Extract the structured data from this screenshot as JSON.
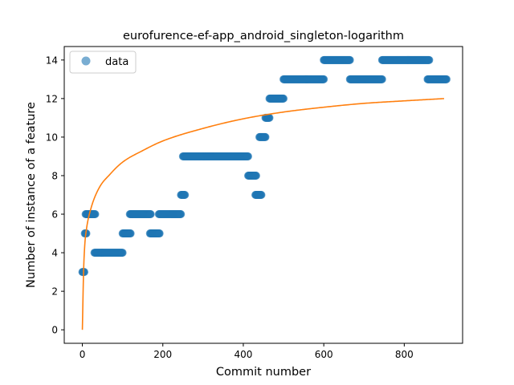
{
  "chart_data": {
    "type": "scatter",
    "title": "eurofurence-ef-app_android_singleton-logarithm",
    "xlabel": "Commit number",
    "ylabel": "Number of instance of a feature",
    "xlim": [
      -45,
      945
    ],
    "ylim": [
      -0.7,
      14.7
    ],
    "x_ticks": [
      0,
      200,
      400,
      600,
      800
    ],
    "y_ticks": [
      0,
      2,
      4,
      6,
      8,
      10,
      12,
      14
    ],
    "legend_position": "top-left",
    "grid": false,
    "series": [
      {
        "name": "data",
        "kind": "points",
        "color": "#1f77b4",
        "alpha": 0.6,
        "segments": [
          {
            "x_start": 0,
            "x_end": 5,
            "y": 3
          },
          {
            "x_start": 6,
            "x_end": 10,
            "y": 5
          },
          {
            "x_start": 8,
            "x_end": 32,
            "y": 6
          },
          {
            "x_start": 30,
            "x_end": 100,
            "y": 4
          },
          {
            "x_start": 100,
            "x_end": 120,
            "y": 5
          },
          {
            "x_start": 118,
            "x_end": 170,
            "y": 6
          },
          {
            "x_start": 168,
            "x_end": 192,
            "y": 5
          },
          {
            "x_start": 190,
            "x_end": 245,
            "y": 6
          },
          {
            "x_start": 245,
            "x_end": 255,
            "y": 7
          },
          {
            "x_start": 250,
            "x_end": 412,
            "y": 9
          },
          {
            "x_start": 412,
            "x_end": 432,
            "y": 8
          },
          {
            "x_start": 430,
            "x_end": 445,
            "y": 7
          },
          {
            "x_start": 440,
            "x_end": 455,
            "y": 10
          },
          {
            "x_start": 455,
            "x_end": 465,
            "y": 11
          },
          {
            "x_start": 465,
            "x_end": 500,
            "y": 12
          },
          {
            "x_start": 500,
            "x_end": 600,
            "y": 13
          },
          {
            "x_start": 600,
            "x_end": 665,
            "y": 14
          },
          {
            "x_start": 665,
            "x_end": 745,
            "y": 13
          },
          {
            "x_start": 745,
            "x_end": 862,
            "y": 14
          },
          {
            "x_start": 858,
            "x_end": 905,
            "y": 13
          }
        ]
      },
      {
        "kind": "fit",
        "model": "logarithm",
        "color": "#ff7f0e",
        "x_start": 0,
        "x_end": 900,
        "points": [
          [
            0,
            0
          ],
          [
            3,
            3.0
          ],
          [
            6,
            4.4
          ],
          [
            10,
            5.2
          ],
          [
            20,
            6.2
          ],
          [
            40,
            7.3
          ],
          [
            70,
            8.1
          ],
          [
            100,
            8.7
          ],
          [
            150,
            9.3
          ],
          [
            200,
            9.8
          ],
          [
            300,
            10.45
          ],
          [
            400,
            10.95
          ],
          [
            500,
            11.3
          ],
          [
            600,
            11.55
          ],
          [
            700,
            11.75
          ],
          [
            800,
            11.88
          ],
          [
            900,
            12.0
          ]
        ]
      }
    ]
  }
}
